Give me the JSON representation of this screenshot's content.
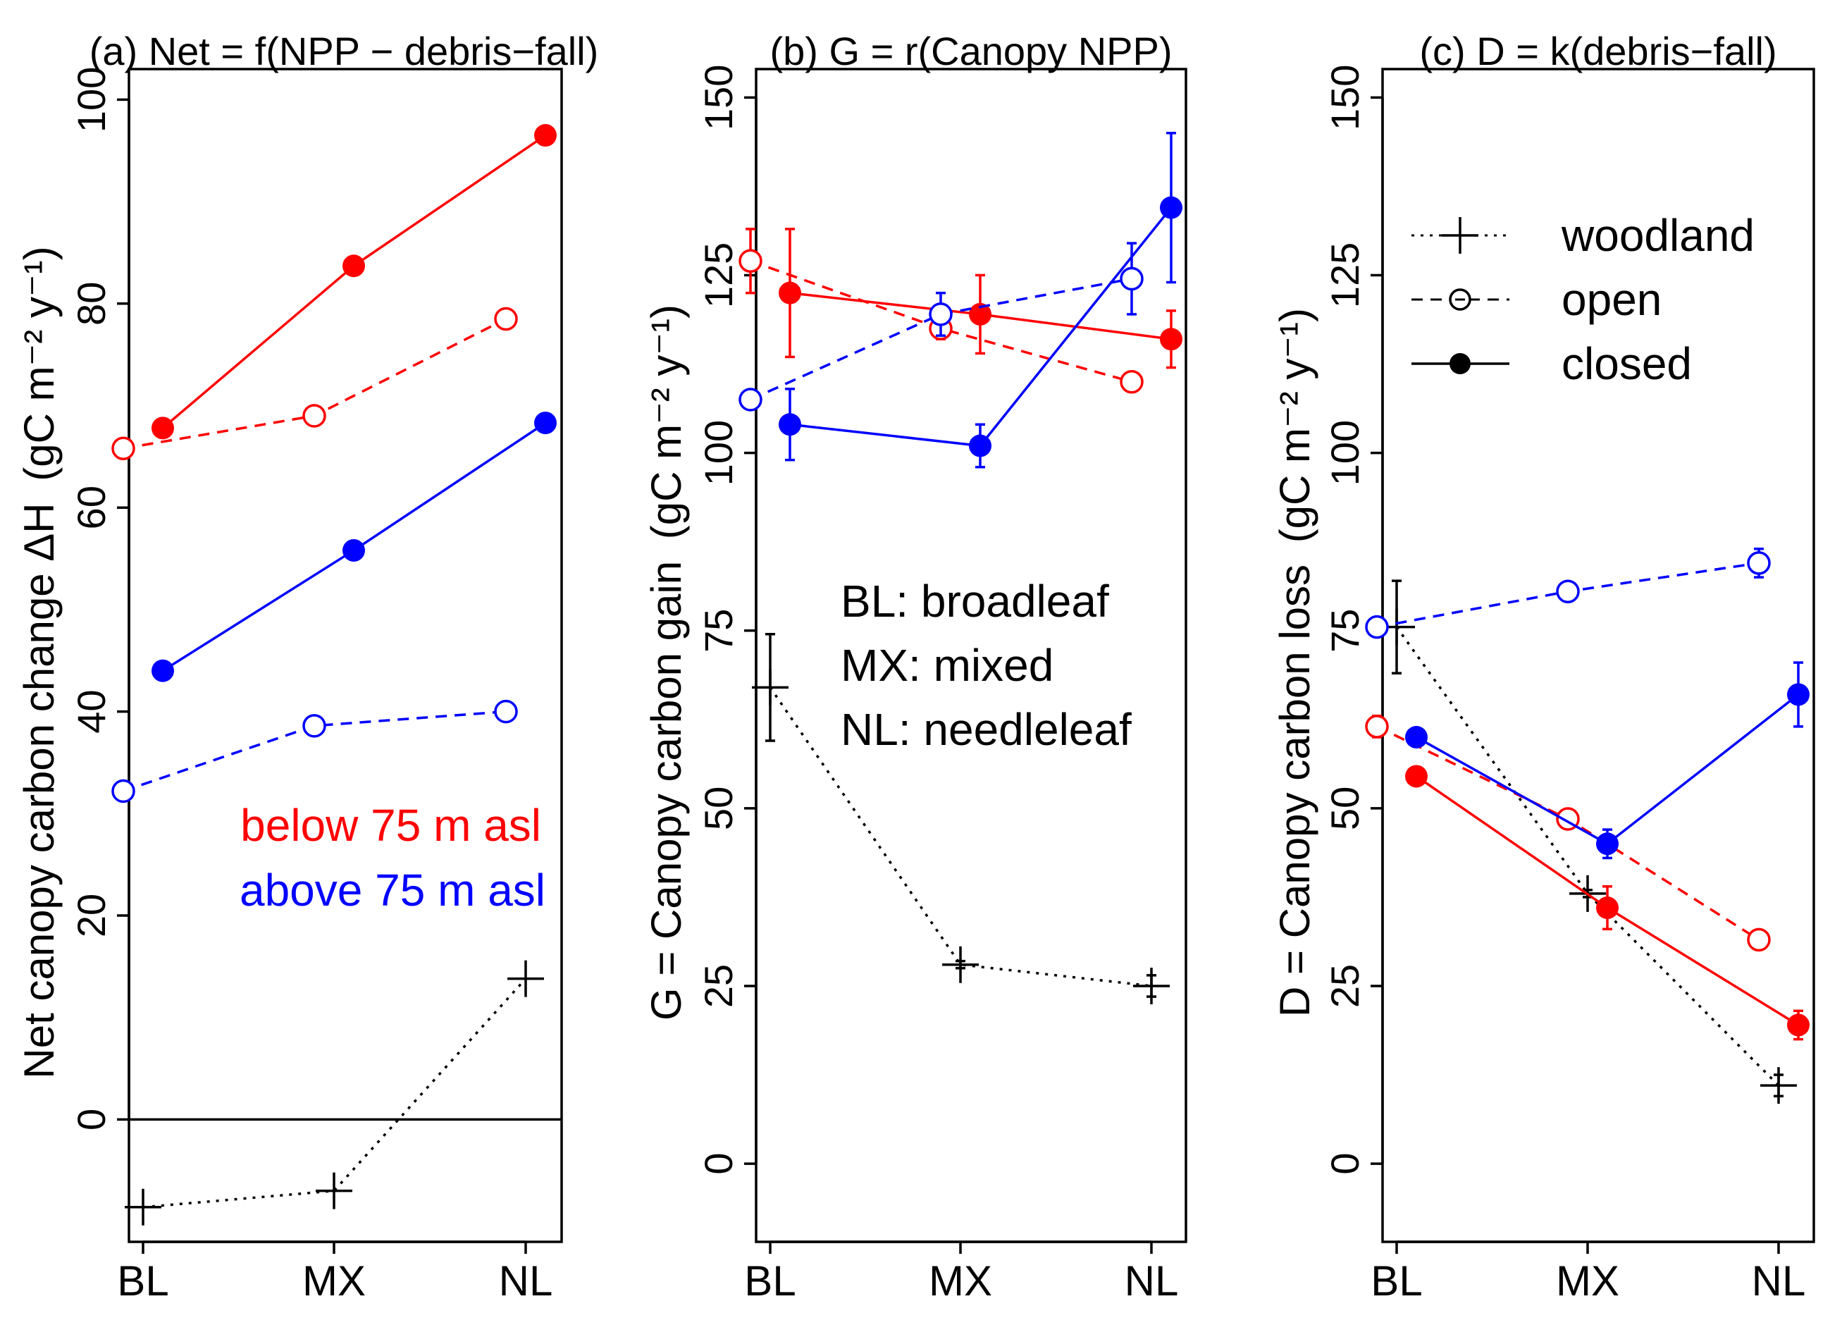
{
  "colors": {
    "low": "#ff0000",
    "high": "#0000ff",
    "woodland": "#000000",
    "axis": "#000000",
    "background": "#ffffff"
  },
  "legend": {
    "woodland": "woodland",
    "open": "open",
    "closed": "closed"
  },
  "elevation_labels": {
    "below": "below 75 m asl",
    "above": "above 75 m asl"
  },
  "pft_key": [
    "BL: broadleaf",
    "MX: mixed",
    "NL: needleleaf"
  ],
  "chart_data": [
    {
      "type": "line",
      "panel": "a",
      "title": "(a) Net = f(NPP − debris−fall)",
      "ylabel": "Net canopy carbon change ΔH",
      "ylabel_units": "(gC m⁻² y⁻¹)",
      "categories": [
        "BL",
        "MX",
        "NL"
      ],
      "ylim": [
        -12,
        103
      ],
      "yticks": [
        0,
        20,
        40,
        60,
        80,
        100
      ],
      "ytick_labels": [
        "0",
        "20",
        "40",
        "60",
        "80",
        "100"
      ],
      "hline": 0,
      "series": [
        {
          "name": "woodland",
          "cover": "woodland",
          "elev": "all",
          "values": [
            -8.6,
            -7.0,
            13.8
          ],
          "err": [
            0,
            0,
            0
          ]
        },
        {
          "name": "open below 75 m asl",
          "cover": "open",
          "elev": "low",
          "values": [
            65.8,
            69.0,
            78.5
          ],
          "err": [
            0.3,
            0.3,
            0.3
          ]
        },
        {
          "name": "closed below 75 m asl",
          "cover": "closed",
          "elev": "low",
          "values": [
            67.8,
            83.7,
            96.5
          ],
          "err": [
            0,
            0,
            0
          ]
        },
        {
          "name": "open above 75 m asl",
          "cover": "open",
          "elev": "high",
          "values": [
            32.2,
            38.6,
            40.0
          ],
          "err": [
            0.3,
            0.3,
            0.3
          ]
        },
        {
          "name": "closed above 75 m asl",
          "cover": "closed",
          "elev": "high",
          "values": [
            44.0,
            55.8,
            68.3
          ],
          "err": [
            0,
            0,
            0
          ]
        }
      ]
    },
    {
      "type": "line",
      "panel": "b",
      "title": "(b) G = r(Canopy NPP)",
      "ylabel": "G = Canopy carbon gain",
      "ylabel_units": "(gC m⁻² y⁻¹)",
      "categories": [
        "BL",
        "MX",
        "NL"
      ],
      "ylim": [
        -11,
        154
      ],
      "yticks": [
        0,
        25,
        50,
        75,
        100,
        125,
        150
      ],
      "ytick_labels": [
        "0",
        "25",
        "50",
        "75",
        "100",
        "125",
        "150"
      ],
      "series": [
        {
          "name": "woodland",
          "cover": "woodland",
          "elev": "all",
          "values": [
            67.0,
            28.0,
            25.0
          ],
          "err": [
            7.5,
            0.5,
            1.5
          ]
        },
        {
          "name": "open below 75 m asl",
          "cover": "open",
          "elev": "low",
          "values": [
            127.0,
            117.5,
            110.0
          ],
          "err": [
            4.5,
            1.5,
            0.5
          ]
        },
        {
          "name": "closed below 75 m asl",
          "cover": "closed",
          "elev": "low",
          "values": [
            122.5,
            119.5,
            116.0
          ],
          "err": [
            9.0,
            5.5,
            4.0
          ]
        },
        {
          "name": "open above 75 m asl",
          "cover": "open",
          "elev": "high",
          "values": [
            107.5,
            119.5,
            124.5
          ],
          "err": [
            1.0,
            3.0,
            5.0
          ]
        },
        {
          "name": "closed above 75 m asl",
          "cover": "closed",
          "elev": "high",
          "values": [
            104.0,
            101.0,
            134.5
          ],
          "err": [
            5.0,
            3.0,
            10.5
          ]
        }
      ]
    },
    {
      "type": "line",
      "panel": "c",
      "title": "(c) D = k(debris−fall)",
      "ylabel": "D = Canopy carbon loss",
      "ylabel_units": "(gC m⁻² y⁻¹)",
      "categories": [
        "BL",
        "MX",
        "NL"
      ],
      "ylim": [
        -11,
        154
      ],
      "yticks": [
        0,
        25,
        50,
        75,
        100,
        125,
        150
      ],
      "ytick_labels": [
        "0",
        "25",
        "50",
        "75",
        "100",
        "125",
        "150"
      ],
      "series": [
        {
          "name": "woodland",
          "cover": "woodland",
          "elev": "all",
          "values": [
            75.5,
            38.0,
            11.0
          ],
          "err": [
            6.5,
            0.5,
            1.5
          ]
        },
        {
          "name": "open below 75 m asl",
          "cover": "open",
          "elev": "low",
          "values": [
            61.5,
            48.5,
            31.5
          ],
          "err": [
            1.5,
            1.0,
            1.0
          ]
        },
        {
          "name": "closed below 75 m asl",
          "cover": "closed",
          "elev": "low",
          "values": [
            54.5,
            36.0,
            19.5
          ],
          "err": [
            0,
            3.0,
            2.0
          ]
        },
        {
          "name": "open above 75 m asl",
          "cover": "open",
          "elev": "high",
          "values": [
            75.5,
            80.5,
            84.5
          ],
          "err": [
            1.0,
            1.0,
            2.0
          ]
        },
        {
          "name": "closed above 75 m asl",
          "cover": "closed",
          "elev": "high",
          "values": [
            60.0,
            45.0,
            66.0
          ],
          "err": [
            0,
            2.0,
            4.5
          ]
        }
      ]
    }
  ]
}
